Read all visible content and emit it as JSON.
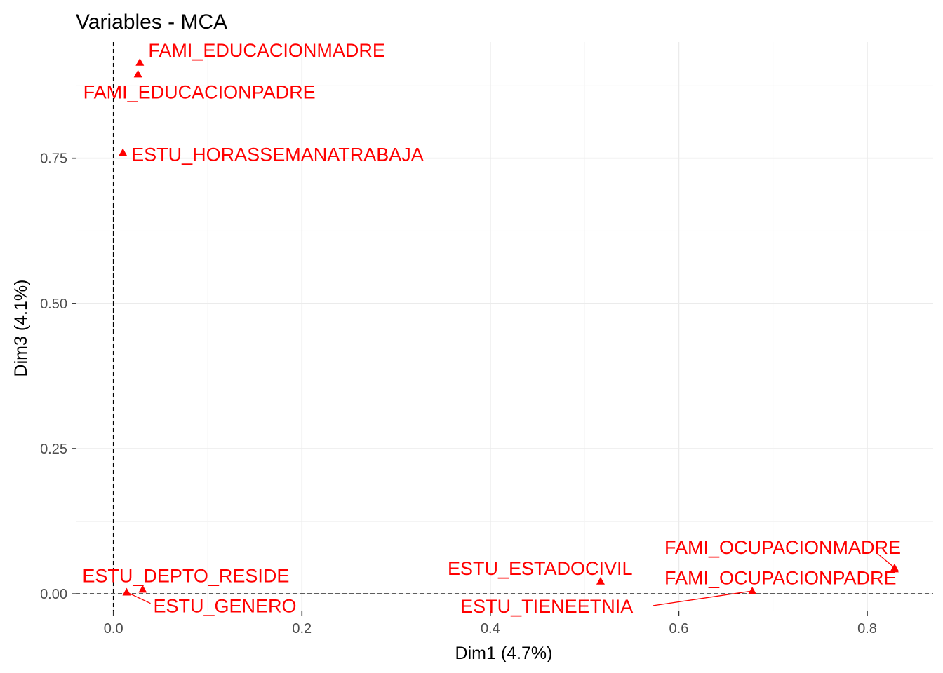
{
  "chart_data": {
    "type": "scatter",
    "title": "Variables - MCA",
    "xlabel": "Dim1 (4.7%)",
    "ylabel": "Dim3 (4.1%)",
    "xlim": [
      -0.04,
      0.87
    ],
    "ylim": [
      -0.03,
      0.95
    ],
    "x_ticks": [
      0.0,
      0.2,
      0.4,
      0.6,
      0.8
    ],
    "x_tick_labels": [
      "0.0",
      "0.2",
      "0.4",
      "0.6",
      "0.8"
    ],
    "y_ticks": [
      0.0,
      0.25,
      0.5,
      0.75
    ],
    "y_tick_labels": [
      "0.00",
      "0.25",
      "0.50",
      "0.75"
    ],
    "grid": true,
    "reference_lines": {
      "x": 0,
      "y": 0
    },
    "marker": "triangle",
    "color": "#ff0000",
    "points": [
      {
        "label": "FAMI_EDUCACIONMADRE",
        "x": 0.028,
        "y": 0.915
      },
      {
        "label": "FAMI_EDUCACIONPADRE",
        "x": 0.026,
        "y": 0.895
      },
      {
        "label": "ESTU_HORASSEMANATRABAJA",
        "x": 0.01,
        "y": 0.76
      },
      {
        "label": "ESTU_DEPTO_RESIDE",
        "x": 0.031,
        "y": 0.008
      },
      {
        "label": "ESTU_GENERO",
        "x": 0.014,
        "y": 0.003
      },
      {
        "label": "ESTU_ESTADOCIVIL",
        "x": 0.517,
        "y": 0.022
      },
      {
        "label": "ESTU_TIENEETNIA",
        "x": 0.678,
        "y": 0.005
      },
      {
        "label": "FAMI_OCUPACIONMADRE",
        "x": 0.829,
        "y": 0.045
      },
      {
        "label": "FAMI_OCUPACIONPADRE",
        "x": 0.829,
        "y": 0.043
      }
    ]
  }
}
